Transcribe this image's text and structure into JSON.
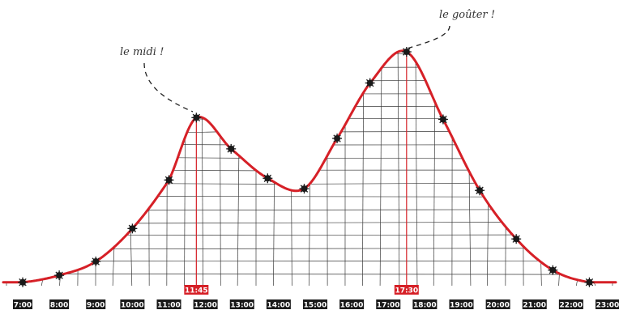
{
  "chart_data": {
    "type": "line",
    "x_ticks": [
      "7:00",
      "8:00",
      "9:00",
      "10:00",
      "11:00",
      "12:00",
      "13:00",
      "14:00",
      "15:00",
      "16:00",
      "17:00",
      "18:00",
      "19:00",
      "20:00",
      "21:00",
      "22:00",
      "23:00"
    ],
    "x_hours": [
      7,
      8,
      9,
      10,
      11,
      12,
      13,
      14,
      15,
      16,
      17,
      18,
      19,
      20,
      21,
      22,
      23
    ],
    "series": [
      {
        "x": [
          7.0,
          8.0,
          9.0,
          10.0,
          11.0,
          11.75,
          12.7,
          13.7,
          14.7,
          15.6,
          16.5,
          17.5,
          18.5,
          19.5,
          20.5,
          21.5,
          22.5
        ],
        "y": [
          2,
          6,
          14,
          33,
          61,
          97,
          79,
          62,
          56,
          85,
          117,
          135,
          96,
          55,
          27,
          9,
          2
        ],
        "color": "#d62027"
      }
    ],
    "xlim": [
      6.8,
      23.3
    ],
    "ylim": [
      0,
      140
    ],
    "grid": true,
    "peaks": [
      {
        "time": 11.75,
        "label": "11:45",
        "note": "le midi !"
      },
      {
        "time": 17.5,
        "label": "17:30",
        "note": "le goûter !"
      }
    ],
    "accent_color": "#d62027",
    "marker_color": "#1a1a1a"
  }
}
